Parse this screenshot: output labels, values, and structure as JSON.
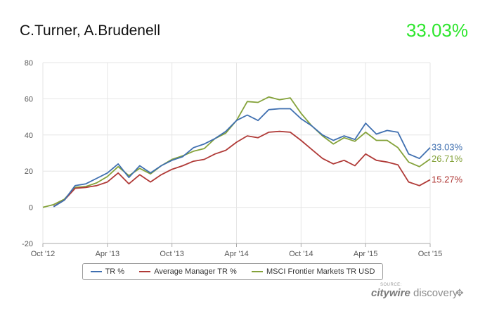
{
  "header": {
    "title": "C.Turner, A.Brudenell",
    "headline_value": "33.03%",
    "headline_color": "#2ee62e"
  },
  "chart_data": {
    "type": "line",
    "title": "C.Turner, A.Brudenell",
    "xlabel": "",
    "ylabel": "",
    "ylim": [
      -20,
      80
    ],
    "yticks": [
      -20,
      0,
      20,
      40,
      60,
      80
    ],
    "xlim": [
      "2012-10",
      "2015-10"
    ],
    "xtick_labels": [
      "Oct '12",
      "Apr '13",
      "Oct '13",
      "Apr '14",
      "Oct '14",
      "Apr '15",
      "Oct '15"
    ],
    "grid": true,
    "legend_position": "bottom",
    "x": [
      "2012-10",
      "2012-11",
      "2012-12",
      "2013-01",
      "2013-02",
      "2013-03",
      "2013-04",
      "2013-05",
      "2013-06",
      "2013-07",
      "2013-08",
      "2013-09",
      "2013-10",
      "2013-11",
      "2013-12",
      "2014-01",
      "2014-02",
      "2014-03",
      "2014-04",
      "2014-05",
      "2014-06",
      "2014-07",
      "2014-08",
      "2014-09",
      "2014-10",
      "2014-11",
      "2014-12",
      "2015-01",
      "2015-02",
      "2015-03",
      "2015-04",
      "2015-05",
      "2015-06",
      "2015-07",
      "2015-08",
      "2015-09",
      "2015-10"
    ],
    "series": [
      {
        "name": "TR %",
        "color": "#3f6fb0",
        "end_label": "33.03%",
        "values": [
          null,
          0.3,
          4,
          12,
          13,
          16,
          19,
          24,
          16.5,
          23,
          19,
          23,
          26,
          28,
          33,
          35,
          38,
          42,
          48,
          51,
          48,
          54,
          54.5,
          54.5,
          49,
          45,
          40,
          37,
          39.5,
          37.5,
          46.5,
          40.5,
          42.5,
          41.5,
          29.5,
          27,
          33.03
        ]
      },
      {
        "name": "Average Manager TR %",
        "color": "#b03a37",
        "end_label": "15.27%",
        "values": [
          null,
          0.5,
          4,
          10.5,
          11,
          12,
          14,
          19,
          13,
          18,
          14,
          18,
          21,
          23,
          25.5,
          26.5,
          29.5,
          31.5,
          36,
          39.5,
          38.5,
          41.5,
          42,
          41.5,
          37,
          32,
          27,
          24,
          26,
          23,
          29.5,
          26,
          25,
          23.5,
          14,
          12,
          15.27
        ]
      },
      {
        "name": "MSCI Frontier Markets TR USD",
        "color": "#84a23a",
        "end_label": "26.71%",
        "values": [
          0,
          1.5,
          4.5,
          11,
          11.5,
          13.5,
          17,
          22.5,
          17.5,
          21.5,
          18.5,
          23,
          26.5,
          28.5,
          31,
          32.5,
          38,
          41,
          48,
          58.5,
          58,
          61,
          59.5,
          60.5,
          52,
          45,
          39.5,
          35,
          38.5,
          36.5,
          41.5,
          37,
          37,
          33,
          25,
          22.5,
          26.71
        ]
      }
    ]
  },
  "source": {
    "label": "SOURCE:",
    "brand_bold": "citywire",
    "brand_rest": " discovery",
    "icon": "move-crosshair-icon"
  }
}
